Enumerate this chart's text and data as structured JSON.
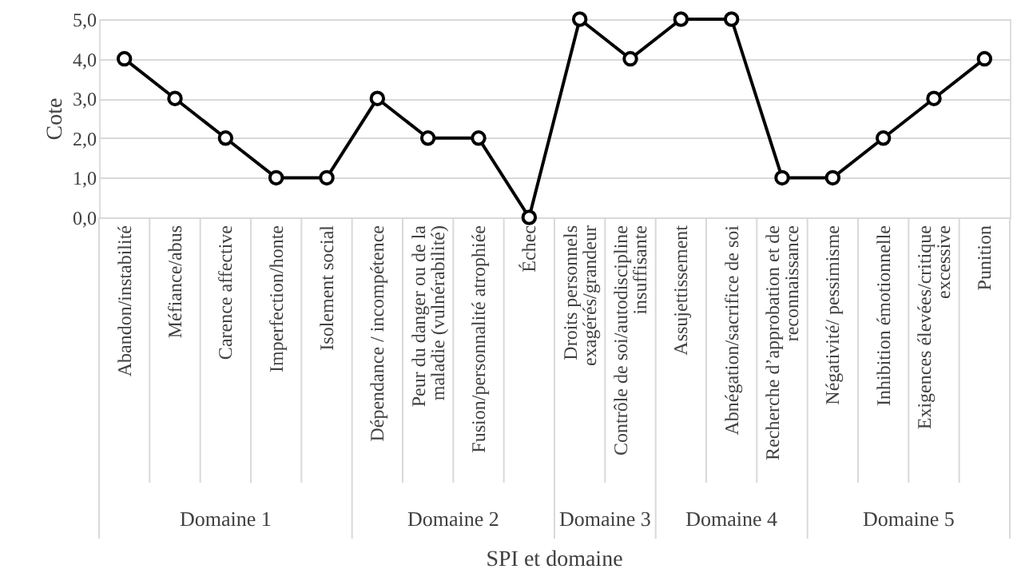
{
  "chart_data": {
    "type": "line",
    "xlabel": "SPI et domaine",
    "ylabel": "Cote",
    "categories": [
      "Abandon/instabilité",
      "Méfiance/abus",
      "Carence affective",
      "Imperfection/honte",
      "Isolement social",
      "Dépendance / incompétence",
      "Peur du danger ou de la maladie (vulnérabilité)",
      "Fusion/personnalité atrophiée",
      "Échec",
      "Droits personnels exagérés/grandeur",
      "Contrôle de soi/autodiscipline insuffisante",
      "Assujettissement",
      "Abnégation/sacrifice de soi",
      "Recherche d’approbation et de reconnaissance",
      "Négativité/ pessimisme",
      "Inhibition émotionnelle",
      "Exigences élevées/critique excessive",
      "Punition"
    ],
    "series": [
      {
        "color": "#000000",
        "values": [
          4,
          3,
          2,
          1,
          1,
          3,
          2,
          2,
          0,
          5,
          4,
          5,
          5,
          1,
          1,
          2,
          3,
          4
        ]
      }
    ],
    "ylim": [
      0,
      5
    ],
    "yticks": [
      {
        "value": 0,
        "label": "0,0"
      },
      {
        "value": 1,
        "label": "1,0"
      },
      {
        "value": 2,
        "label": "2,0"
      },
      {
        "value": 3,
        "label": "3,0"
      },
      {
        "value": 4,
        "label": "4,0"
      },
      {
        "value": 5,
        "label": "5,0"
      }
    ],
    "grid": "y",
    "marker": "circle",
    "line_style": "solid",
    "annotations": [
      "Domaine 1",
      "Domaine 2",
      "Domaine 3",
      "Domaine 4",
      "Domaine 5"
    ]
  }
}
